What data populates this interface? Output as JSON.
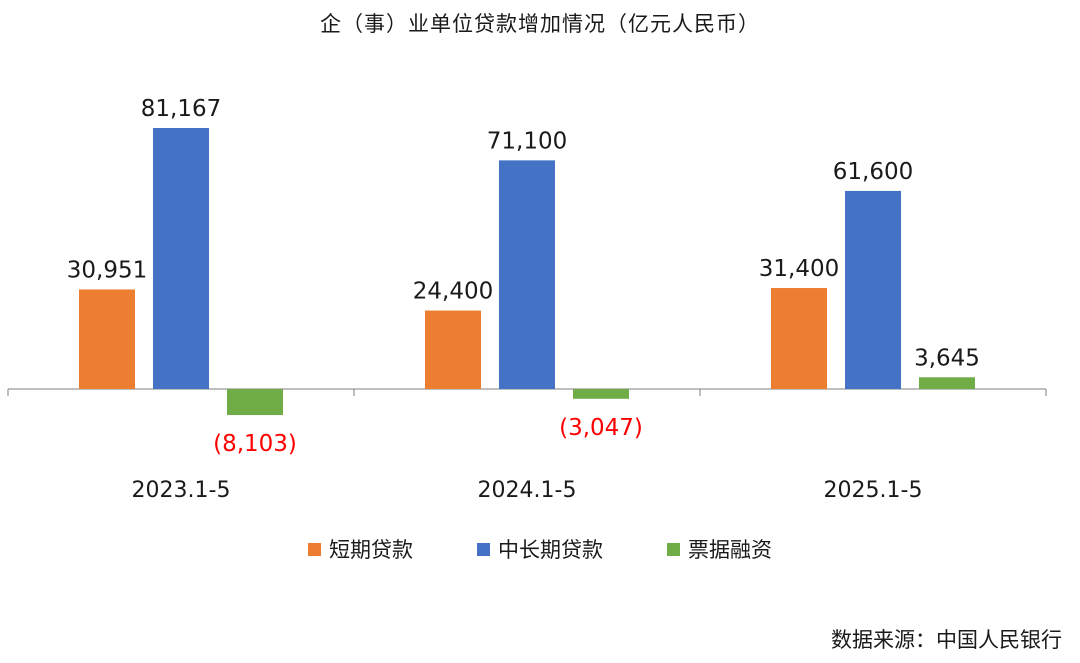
{
  "chart_data": {
    "type": "bar",
    "title": "企（事）业单位贷款增加情况（亿元人民币）",
    "categories": [
      "2023.1-5",
      "2024.1-5",
      "2025.1-5"
    ],
    "series": [
      {
        "name": "短期贷款",
        "color": "#ed7d31",
        "values": [
          30951,
          24400,
          31400
        ],
        "labels": [
          "30,951",
          "24,400",
          "31,400"
        ]
      },
      {
        "name": "中长期贷款",
        "color": "#4472c4",
        "values": [
          81167,
          71100,
          61600
        ],
        "labels": [
          "81,167",
          "71,100",
          "61,600"
        ]
      },
      {
        "name": "票据融资",
        "color": "#70ad47",
        "values": [
          -8103,
          -3047,
          3645
        ],
        "labels": [
          "(8,103)",
          "(3,047)",
          "3,645"
        ]
      }
    ],
    "negative_label_color": "#ff0000",
    "ylim": [
      -10000,
      95000
    ],
    "grid": false,
    "legend_position": "bottom"
  },
  "source_note": "数据来源：中国人民银行"
}
